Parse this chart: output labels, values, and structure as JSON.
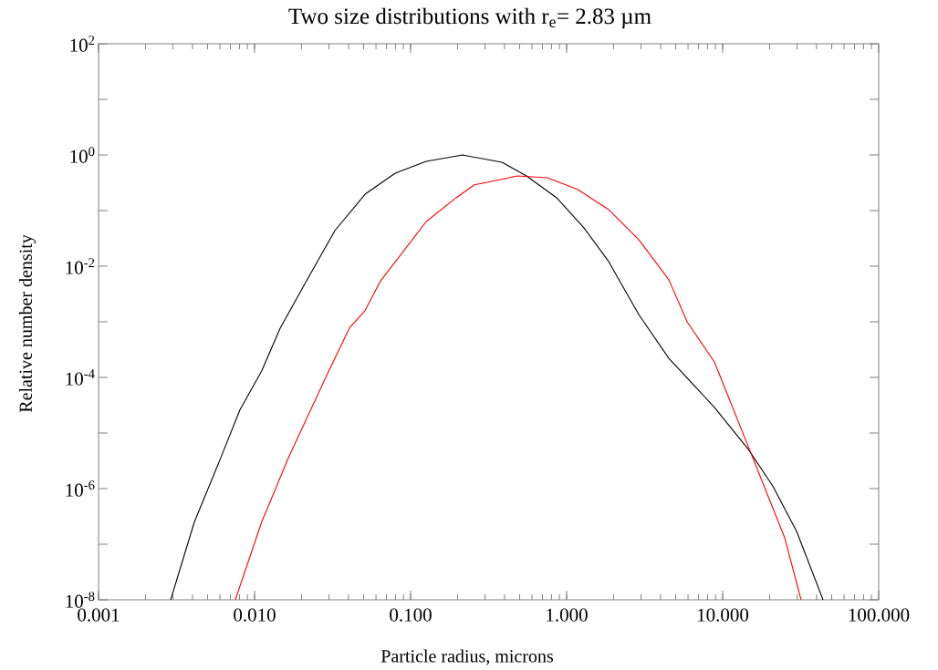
{
  "chart_data": {
    "type": "line",
    "title": "Two size distributions with r$_{e}$= 2.83 µm",
    "xlabel": "Particle radius, microns",
    "ylabel": "Relative number density",
    "log": "xy",
    "xlim": [
      0.001,
      100
    ],
    "ylim": [
      1e-08,
      100
    ],
    "xticks": [
      {
        "value": 0.001,
        "label": "0.001"
      },
      {
        "value": 0.01,
        "label": "0.010"
      },
      {
        "value": 0.1,
        "label": "0.100"
      },
      {
        "value": 1,
        "label": "1.000"
      },
      {
        "value": 10,
        "label": "10.000"
      },
      {
        "value": 100,
        "label": "100.000"
      }
    ],
    "yticks": [
      {
        "value": 1e-08,
        "label": "10$^{-8}$"
      },
      {
        "value": 1e-07,
        "label": null
      },
      {
        "value": 1e-06,
        "label": "10$^{-6}$"
      },
      {
        "value": 1e-05,
        "label": null
      },
      {
        "value": 0.0001,
        "label": "10$^{-4}$"
      },
      {
        "value": 0.001,
        "label": null
      },
      {
        "value": 0.01,
        "label": "10$^{-2}$"
      },
      {
        "value": 0.1,
        "label": null
      },
      {
        "value": 1,
        "label": "10$^{0}$"
      },
      {
        "value": 10,
        "label": null
      },
      {
        "value": 100,
        "label": "10$^{2}$"
      }
    ],
    "series": [
      {
        "color": "#000000",
        "x": [
          0.0029,
          0.00411,
          0.00592,
          0.00805,
          0.0111,
          0.0146,
          0.0207,
          0.0327,
          0.0511,
          0.0797,
          0.126,
          0.215,
          0.385,
          0.553,
          0.863,
          1.29,
          1.86,
          2.9,
          4.52,
          8.85,
          14.6,
          21.0,
          29.8,
          44.0
        ],
        "values": [
          1e-08,
          2.5e-07,
          3e-06,
          2.6e-05,
          0.00013,
          0.00077,
          0.0045,
          0.0436,
          0.197,
          0.47,
          0.77,
          1.0,
          0.74,
          0.42,
          0.17,
          0.049,
          0.0121,
          0.00135,
          0.00022,
          2.9e-05,
          5.1e-06,
          1.1e-06,
          1.7e-07,
          1e-08
        ]
      },
      {
        "color": "#ff0000",
        "x": [
          0.00753,
          0.0111,
          0.0167,
          0.0286,
          0.0405,
          0.0511,
          0.0641,
          0.126,
          0.196,
          0.256,
          0.305,
          0.483,
          0.753,
          1.175,
          1.86,
          2.9,
          4.52,
          5.92,
          8.85,
          14.6,
          19.1,
          25.0,
          31.8
        ],
        "values": [
          1e-08,
          2.5e-07,
          3.9e-06,
          0.0001,
          0.00077,
          0.0016,
          0.0054,
          0.0636,
          0.17,
          0.29,
          0.32,
          0.42,
          0.39,
          0.24,
          0.104,
          0.03,
          0.0057,
          0.001,
          0.00019,
          5.7e-06,
          8.6e-07,
          1.3e-07,
          1e-08
        ]
      }
    ]
  }
}
